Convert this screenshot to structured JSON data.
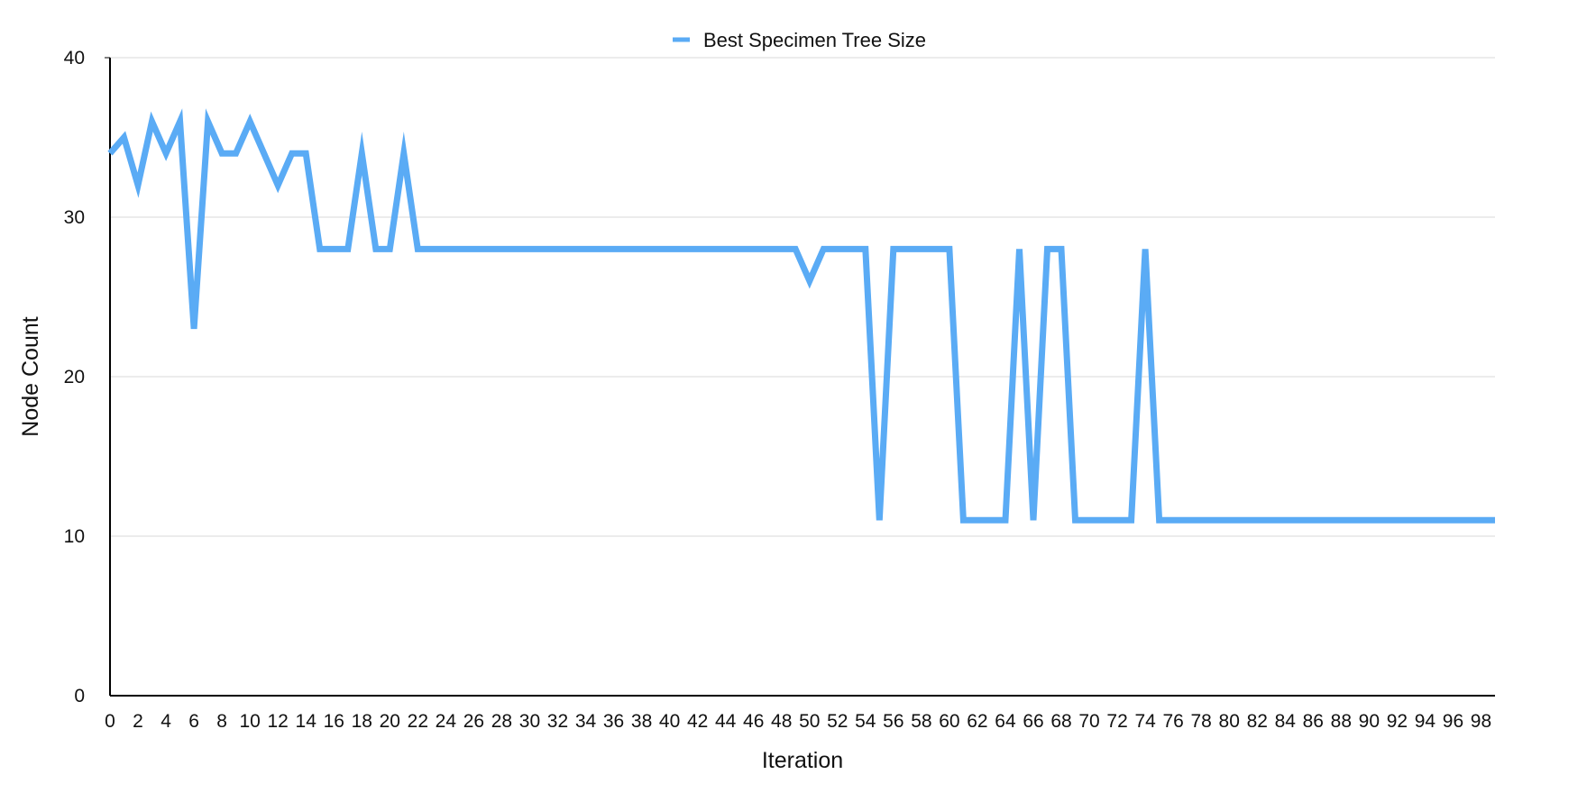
{
  "chart_data": {
    "type": "line",
    "title": "",
    "xlabel": "Iteration",
    "ylabel": "Node Count",
    "xlim": [
      0,
      99
    ],
    "ylim": [
      0,
      40
    ],
    "y_ticks": [
      0,
      10,
      20,
      30,
      40
    ],
    "x_tick_step": 2,
    "grid": "horizontal",
    "legend_position": "top-center",
    "series": [
      {
        "name": "Best Specimen Tree Size",
        "color": "#5aabf5",
        "x": [
          0,
          1,
          2,
          3,
          4,
          5,
          6,
          7,
          8,
          9,
          10,
          11,
          12,
          13,
          14,
          15,
          16,
          17,
          18,
          19,
          20,
          21,
          22,
          23,
          24,
          25,
          26,
          27,
          28,
          29,
          30,
          31,
          32,
          33,
          34,
          35,
          36,
          37,
          38,
          39,
          40,
          41,
          42,
          43,
          44,
          45,
          46,
          47,
          48,
          49,
          50,
          51,
          52,
          53,
          54,
          55,
          56,
          57,
          58,
          59,
          60,
          61,
          62,
          63,
          64,
          65,
          66,
          67,
          68,
          69,
          70,
          71,
          72,
          73,
          74,
          75,
          76,
          77,
          78,
          79,
          80,
          81,
          82,
          83,
          84,
          85,
          86,
          87,
          88,
          89,
          90,
          91,
          92,
          93,
          94,
          95,
          96,
          97,
          98,
          99
        ],
        "values": [
          34,
          35,
          32,
          36,
          34,
          36,
          23,
          36,
          34,
          34,
          36,
          34,
          32,
          34,
          34,
          28,
          28,
          28,
          34,
          28,
          28,
          34,
          28,
          28,
          28,
          28,
          28,
          28,
          28,
          28,
          28,
          28,
          28,
          28,
          28,
          28,
          28,
          28,
          28,
          28,
          28,
          28,
          28,
          28,
          28,
          28,
          28,
          28,
          28,
          28,
          26,
          28,
          28,
          28,
          28,
          11,
          28,
          28,
          28,
          28,
          28,
          11,
          11,
          11,
          11,
          28,
          11,
          28,
          28,
          11,
          11,
          11,
          11,
          11,
          28,
          11,
          11,
          11,
          11,
          11,
          11,
          11,
          11,
          11,
          11,
          11,
          11,
          11,
          11,
          11,
          11,
          11,
          11,
          11,
          11,
          11,
          11,
          11,
          11,
          11
        ]
      }
    ]
  }
}
